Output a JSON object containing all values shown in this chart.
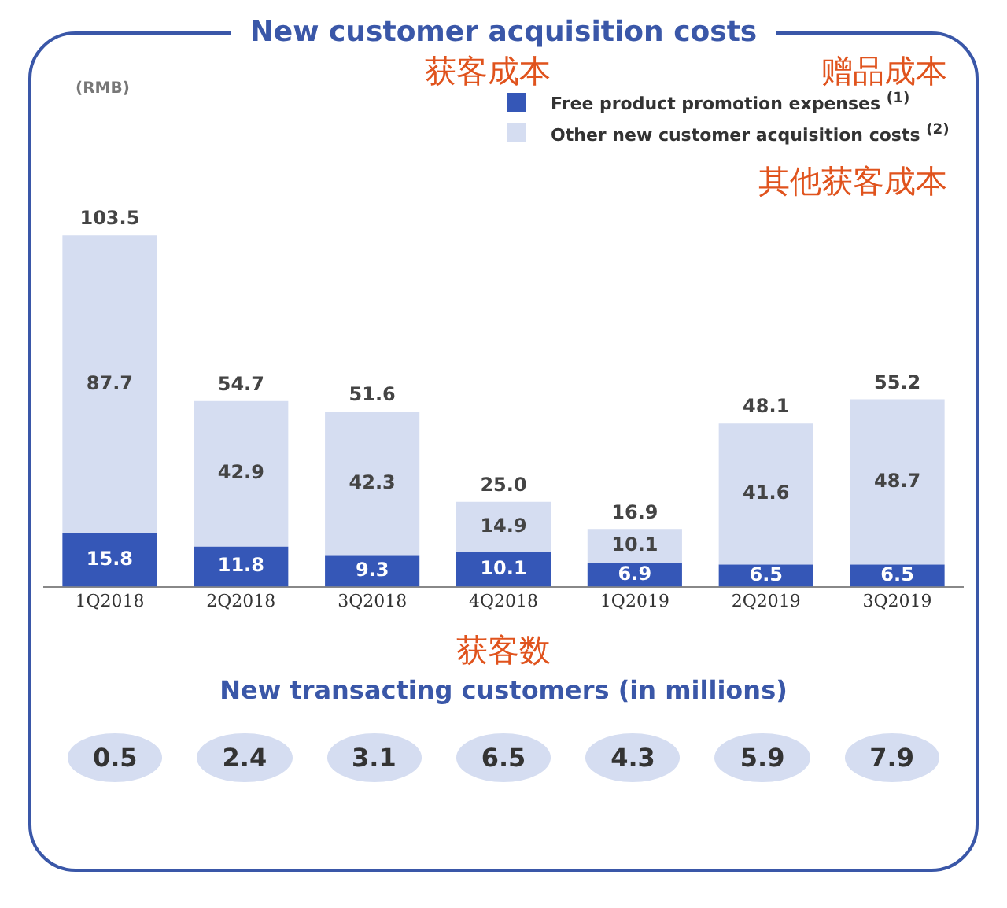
{
  "chart_data": [
    {
      "type": "bar",
      "title": "New customer acquisition costs",
      "ylabel": "(RMB)",
      "stacked": true,
      "legend": "top right",
      "tick_labels": "x",
      "grid": false,
      "data_labels": true,
      "annotations": [
        "获客成本",
        "赠品成本",
        "其他获客成本"
      ],
      "categories": [
        "1Q2018",
        "2Q2018",
        "3Q2018",
        "4Q2018",
        "1Q2019",
        "2Q2019",
        "3Q2019"
      ],
      "series": [
        {
          "name": "Free product promotion expenses $^{(1)}$",
          "color": "#3557b7",
          "values": [
            15.8,
            11.8,
            9.3,
            10.1,
            6.9,
            6.5,
            6.5
          ]
        },
        {
          "name": "Other new customer acquisition costs $^{(2)}$",
          "color": "#d5ddf1",
          "values": [
            87.7,
            42.9,
            42.3,
            14.9,
            10.1,
            41.6,
            48.7
          ]
        }
      ],
      "totals": [
        "103.5",
        "54.7",
        "51.6",
        "25.0",
        "16.9",
        "48.1",
        "55.2"
      ]
    },
    {
      "type": "other",
      "title": "New transacting customers (in millions)",
      "annotations": [
        "获客数"
      ],
      "values": [
        0.5,
        2.4,
        3.1,
        6.5,
        4.3,
        5.9,
        7.9
      ],
      "data_labels": true
    }
  ]
}
